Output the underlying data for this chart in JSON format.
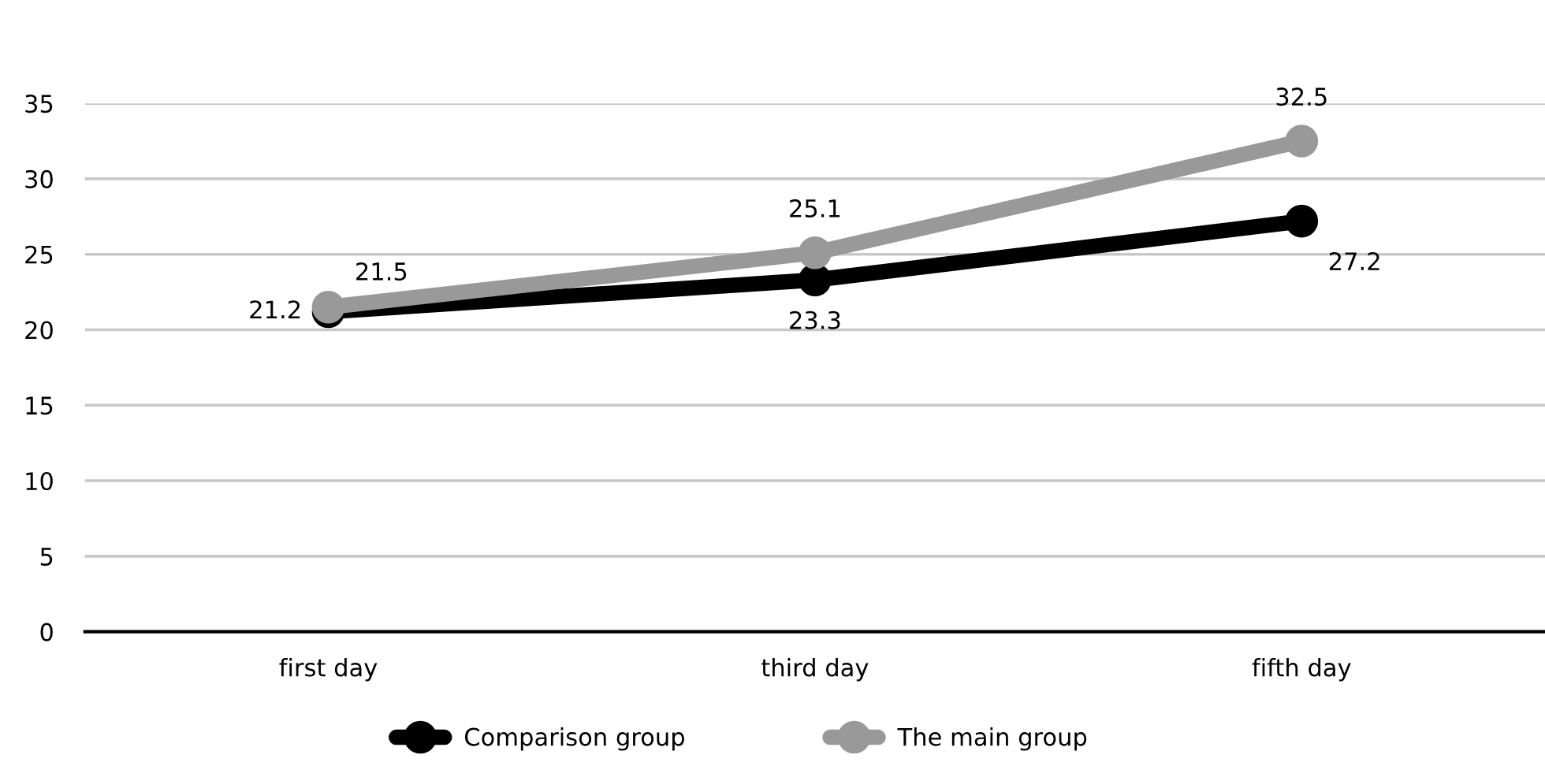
{
  "chart_data": {
    "type": "line",
    "categories": [
      "first day",
      "third day",
      "fifth day"
    ],
    "series": [
      {
        "name": "Comparison group",
        "color": "#000000",
        "values": [
          21.2,
          23.3,
          27.2
        ]
      },
      {
        "name": "The main group",
        "color": "#999999",
        "values": [
          21.5,
          25.1,
          32.5
        ]
      }
    ],
    "ylim": [
      0,
      35
    ],
    "yticks": [
      0,
      5,
      10,
      15,
      20,
      25,
      30,
      35
    ],
    "grid": "y",
    "legend": "bottom",
    "marker": "circle",
    "line_style": "solid",
    "data_labels": true
  }
}
